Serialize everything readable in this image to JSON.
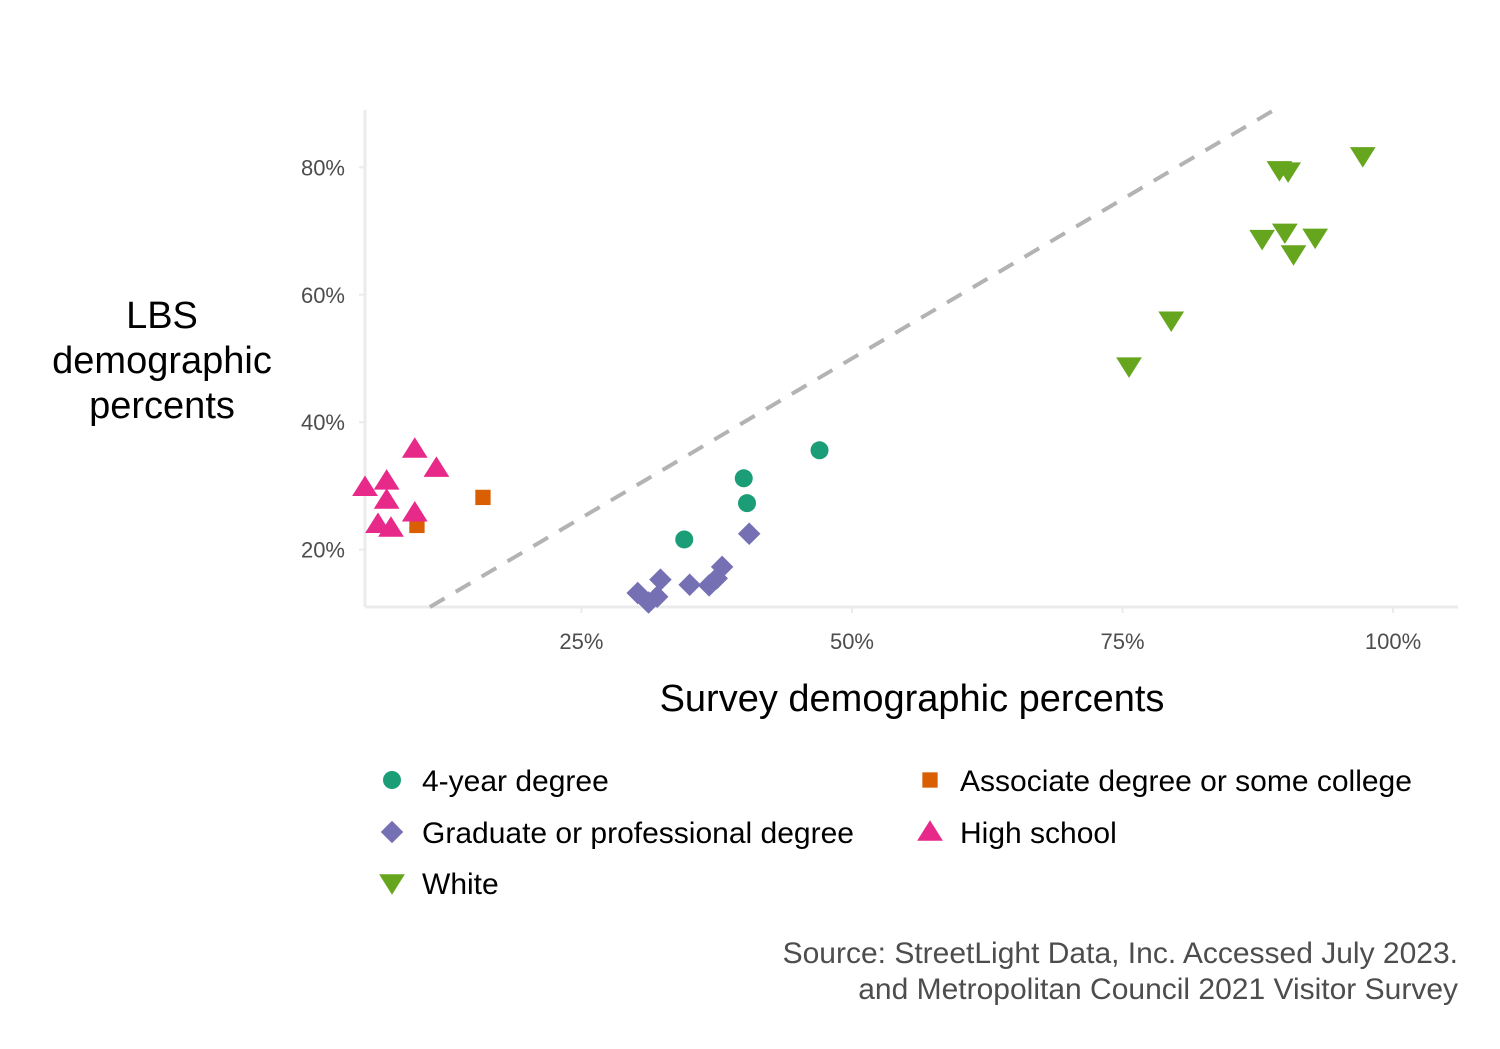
{
  "chart_data": {
    "type": "scatter",
    "xlabel": "Survey demographic percents",
    "ylabel": [
      "LBS",
      "demographic",
      "percents"
    ],
    "xlim": [
      5,
      106
    ],
    "ylim": [
      11,
      89
    ],
    "x_ticks": [
      25,
      50,
      75,
      100
    ],
    "x_tick_labels": [
      "25%",
      "50%",
      "75%",
      "100%"
    ],
    "y_ticks": [
      20,
      40,
      60,
      80
    ],
    "y_tick_labels": [
      "20%",
      "40%",
      "60%",
      "80%"
    ],
    "grid": false,
    "reference_line": {
      "type": "identity",
      "style": "dashed",
      "color": "#b3b3b3"
    },
    "legend_position": "bottom",
    "caption": [
      "Source: StreetLight Data, Inc. Accessed July 2023.",
      "and Metropolitan Council 2021 Visitor Survey"
    ],
    "series": [
      {
        "name": "4-year degree",
        "shape": "circle",
        "color": "#1b9e77",
        "points": [
          [
            34.5,
            21.6
          ],
          [
            40.0,
            31.2
          ],
          [
            40.3,
            27.3
          ],
          [
            47.0,
            35.6
          ]
        ]
      },
      {
        "name": "Associate degree or some college",
        "shape": "square",
        "color": "#d95f02",
        "points": [
          [
            9.8,
            23.8
          ],
          [
            15.9,
            28.2
          ]
        ]
      },
      {
        "name": "Graduate or professional degree",
        "shape": "diamond",
        "color": "#7570b3",
        "points": [
          [
            30.2,
            13.2
          ],
          [
            31.2,
            11.7
          ],
          [
            32.0,
            12.6
          ],
          [
            32.3,
            15.3
          ],
          [
            35.0,
            14.5
          ],
          [
            36.8,
            14.4
          ],
          [
            37.5,
            15.5
          ],
          [
            38.0,
            17.3
          ],
          [
            40.5,
            22.5
          ]
        ]
      },
      {
        "name": "High school",
        "shape": "triangle-up",
        "color": "#e7298a",
        "points": [
          [
            5.0,
            29.8
          ],
          [
            6.2,
            24.0
          ],
          [
            7.0,
            30.8
          ],
          [
            7.0,
            27.8
          ],
          [
            7.4,
            23.4
          ],
          [
            9.6,
            35.8
          ],
          [
            9.6,
            25.8
          ],
          [
            11.6,
            32.8
          ]
        ]
      },
      {
        "name": "White",
        "shape": "triangle-down",
        "color": "#66a61e",
        "points": [
          [
            75.6,
            48.8
          ],
          [
            79.5,
            56.0
          ],
          [
            87.9,
            68.8
          ],
          [
            89.5,
            79.6
          ],
          [
            90.3,
            79.4
          ],
          [
            90.0,
            69.8
          ],
          [
            90.8,
            66.4
          ],
          [
            92.8,
            69.0
          ],
          [
            97.2,
            81.8
          ]
        ]
      }
    ]
  }
}
